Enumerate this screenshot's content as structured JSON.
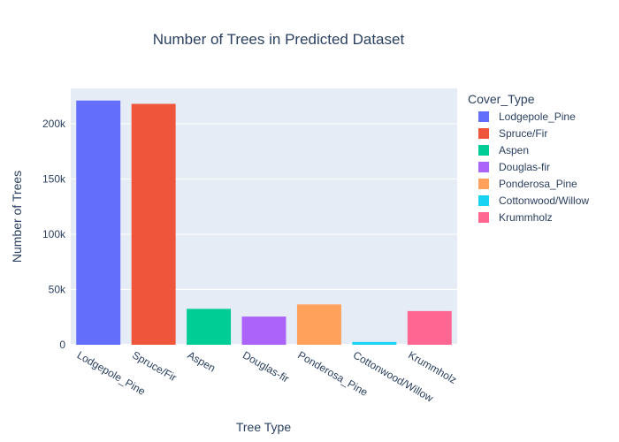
{
  "chart_data": {
    "type": "bar",
    "title": "Number of Trees in Predicted Dataset",
    "xlabel": "Tree Type",
    "ylabel": "Number of Trees",
    "categories": [
      "Lodgepole_Pine",
      "Spruce/Fir",
      "Aspen",
      "Douglas-fir",
      "Ponderosa_Pine",
      "Cottonwood/Willow",
      "Krummholz"
    ],
    "values": [
      221000,
      218000,
      32500,
      25500,
      36500,
      2500,
      30500
    ],
    "colors": [
      "#636efa",
      "#ef553b",
      "#00cc96",
      "#ab63fa",
      "#ffa15a",
      "#19d3f3",
      "#ff6692"
    ],
    "ylim": [
      0,
      232000
    ],
    "yticks": [
      0,
      50000,
      100000,
      150000,
      200000
    ],
    "ytick_labels": [
      "0",
      "50k",
      "100k",
      "150k",
      "200k"
    ],
    "legend": {
      "title": "Cover_Type",
      "placement": "right",
      "entries": [
        "Lodgepole_Pine",
        "Spruce/Fir",
        "Aspen",
        "Douglas-fir",
        "Ponderosa_Pine",
        "Cottonwood/Willow",
        "Krummholz"
      ]
    },
    "plot_background": "#e5ecf6",
    "grid": true
  }
}
